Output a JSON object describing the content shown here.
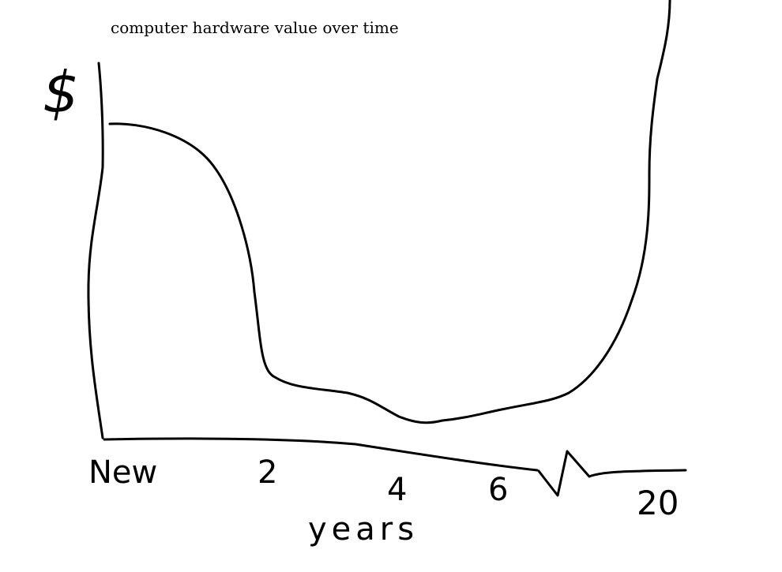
{
  "chart_data": {
    "type": "line",
    "title": "computer hardware value over time",
    "xlabel": "years",
    "ylabel": "$",
    "x_ticks": [
      "New",
      "2",
      "4",
      "6",
      "20"
    ],
    "axis_break": "between 6 and 20",
    "grid": false,
    "legend": "none",
    "series": [
      {
        "x": [
          0,
          0.5,
          1,
          1.5,
          2,
          2.5,
          3,
          3.5,
          4,
          5,
          6,
          7,
          8,
          12,
          16,
          20
        ],
        "values": [
          100,
          98,
          93,
          82,
          45,
          20,
          14,
          12,
          10,
          8,
          9,
          13,
          17,
          30,
          60,
          130
        ]
      }
    ]
  },
  "colors": {
    "line": "#000000",
    "background": "#ffffff"
  }
}
